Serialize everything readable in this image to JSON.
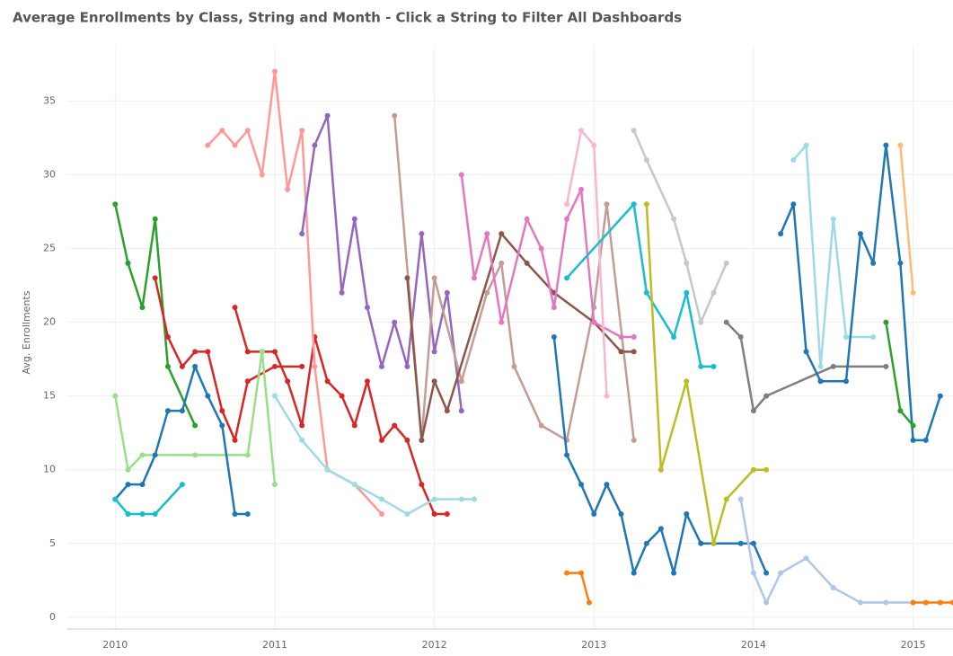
{
  "chart_data": {
    "type": "line",
    "title": "Average Enrollments by Class, String and Month - Click a String to Filter All Dashboards",
    "y_label": "Avg. Enrollments",
    "xlim": [
      2009.7,
      2015.25
    ],
    "ylim": [
      -0.8,
      38.8
    ],
    "xticks": [
      2010,
      2011,
      2012,
      2013,
      2014,
      2015
    ],
    "yticks": [
      0,
      5,
      10,
      15,
      20,
      25,
      30,
      35
    ],
    "grid": true,
    "series": [
      {
        "color": "#2ca02c",
        "x": [
          2010.0,
          2010.08,
          2010.17,
          2010.25,
          2010.33,
          2010.5
        ],
        "values": [
          28,
          24,
          21,
          27,
          17,
          13
        ]
      },
      {
        "color": "#d62728",
        "x": [
          2010.25,
          2010.33,
          2010.42,
          2010.5,
          2010.58,
          2010.67,
          2010.75,
          2010.83,
          2011.0,
          2011.17
        ],
        "values": [
          23,
          19,
          17,
          18,
          18,
          14,
          12,
          16,
          17,
          17
        ]
      },
      {
        "color": "#d62728",
        "x": [
          2010.75,
          2010.83,
          2010.92,
          2011.0,
          2011.08,
          2011.17,
          2011.25,
          2011.33,
          2011.42,
          2011.5,
          2011.58,
          2011.67,
          2011.75,
          2011.83,
          2011.92,
          2012.0,
          2012.08
        ],
        "values": [
          21,
          18,
          18,
          18,
          16,
          13,
          19,
          16,
          15,
          13,
          16,
          12,
          13,
          12,
          9,
          7,
          7
        ]
      },
      {
        "color": "#98df8a",
        "x": [
          2010.0,
          2010.08,
          2010.17,
          2010.5,
          2010.83,
          2010.92,
          2011.0
        ],
        "values": [
          15,
          10,
          11,
          11,
          11,
          18,
          9
        ]
      },
      {
        "color": "#1f77b4",
        "x": [
          2010.0,
          2010.08,
          2010.17,
          2010.25,
          2010.33,
          2010.42,
          2010.5,
          2010.58,
          2010.67,
          2010.75,
          2010.83
        ],
        "values": [
          8,
          9,
          9,
          11,
          14,
          14,
          17,
          15,
          13,
          7,
          7
        ]
      },
      {
        "color": "#17becf",
        "x": [
          2010.0,
          2010.08,
          2010.17,
          2010.25,
          2010.42
        ],
        "values": [
          8,
          7,
          7,
          7,
          9
        ]
      },
      {
        "color": "#ff9896",
        "x": [
          2010.58,
          2010.67,
          2010.75,
          2010.83,
          2010.92,
          2011.0,
          2011.08,
          2011.17,
          2011.25,
          2011.33,
          2011.5,
          2011.67
        ],
        "values": [
          32,
          33,
          32,
          33,
          30,
          37,
          29,
          33,
          17,
          10,
          9,
          7
        ]
      },
      {
        "color": "#9edae5",
        "x": [
          2011.0,
          2011.17,
          2011.33,
          2011.5,
          2011.67,
          2011.83,
          2012.0,
          2012.17,
          2012.25
        ],
        "values": [
          15,
          12,
          10,
          9,
          8,
          7,
          8,
          8,
          8
        ]
      },
      {
        "color": "#9467bd",
        "x": [
          2011.17,
          2011.25,
          2011.33,
          2011.42,
          2011.5,
          2011.58,
          2011.67,
          2011.75,
          2011.83,
          2011.92,
          2012.0,
          2012.08,
          2012.17
        ],
        "values": [
          26,
          32,
          34,
          22,
          27,
          21,
          17,
          20,
          17,
          26,
          18,
          22,
          14
        ]
      },
      {
        "color": "#c49c94",
        "x": [
          2011.75,
          2011.92,
          2012.0,
          2012.17,
          2012.33,
          2012.42,
          2012.5,
          2012.67,
          2012.83,
          2013.0,
          2013.08,
          2013.25
        ],
        "values": [
          34,
          12,
          23,
          16,
          22,
          24,
          17,
          13,
          12,
          21,
          28,
          12
        ]
      },
      {
        "color": "#8c564b",
        "x": [
          2011.83,
          2011.92,
          2012.0,
          2012.08,
          2012.42,
          2012.58,
          2012.75,
          2013.0,
          2013.17,
          2013.25
        ],
        "values": [
          23,
          12,
          16,
          14,
          26,
          24,
          22,
          20,
          18,
          18
        ]
      },
      {
        "color": "#e377c2",
        "x": [
          2012.17,
          2012.25,
          2012.33,
          2012.42,
          2012.58,
          2012.67,
          2012.75,
          2012.83,
          2012.92,
          2013.0,
          2013.17,
          2013.25
        ],
        "values": [
          30,
          23,
          26,
          20,
          27,
          25,
          21,
          27,
          29,
          20,
          19,
          19
        ]
      },
      {
        "color": "#f7b6d2",
        "x": [
          2012.83,
          2012.92,
          2013.0,
          2013.08
        ],
        "values": [
          28,
          33,
          32,
          15
        ]
      },
      {
        "color": "#17becf",
        "x": [
          2012.83,
          2013.25,
          2013.33,
          2013.5,
          2013.58,
          2013.67,
          2013.75
        ],
        "values": [
          23,
          28,
          22,
          19,
          22,
          17,
          17
        ]
      },
      {
        "color": "#c7c7c7",
        "x": [
          2013.25,
          2013.33,
          2013.5,
          2013.58,
          2013.67,
          2013.75,
          2013.83
        ],
        "values": [
          33,
          31,
          27,
          24,
          20,
          22,
          24
        ]
      },
      {
        "color": "#1f77b4",
        "x": [
          2012.75,
          2012.83,
          2012.92,
          2013.0,
          2013.08,
          2013.17,
          2013.25,
          2013.33,
          2013.42,
          2013.5,
          2013.58,
          2013.67,
          2013.75,
          2013.92,
          2014.0,
          2014.08
        ],
        "values": [
          19,
          11,
          9,
          7,
          9,
          7,
          3,
          5,
          6,
          3,
          7,
          5,
          5,
          5,
          5,
          3
        ]
      },
      {
        "color": "#bcbd22",
        "x": [
          2013.33,
          2013.42,
          2013.58,
          2013.75,
          2013.83,
          2014.0,
          2014.08
        ],
        "values": [
          28,
          10,
          16,
          5,
          8,
          10,
          10
        ]
      },
      {
        "color": "#7f7f7f",
        "x": [
          2013.83,
          2013.92,
          2014.0,
          2014.08,
          2014.5,
          2014.83
        ],
        "values": [
          20,
          19,
          14,
          15,
          17,
          17
        ]
      },
      {
        "color": "#aec7e8",
        "x": [
          2013.92,
          2014.0,
          2014.08,
          2014.17,
          2014.33,
          2014.5,
          2014.67,
          2014.83,
          2015.0
        ],
        "values": [
          8,
          3,
          1,
          3,
          4,
          2,
          1,
          1,
          1
        ]
      },
      {
        "color": "#9edae5",
        "x": [
          2014.25,
          2014.33,
          2014.42,
          2014.5,
          2014.58,
          2014.75
        ],
        "values": [
          31,
          32,
          17,
          27,
          19,
          19
        ]
      },
      {
        "color": "#1f77b4",
        "x": [
          2014.17,
          2014.25,
          2014.33,
          2014.42,
          2014.58,
          2014.67,
          2014.75,
          2014.83,
          2014.92,
          2015.0,
          2015.08,
          2015.17
        ],
        "values": [
          26,
          28,
          18,
          16,
          16,
          26,
          24,
          32,
          24,
          12,
          12,
          15
        ]
      },
      {
        "color": "#2ca02c",
        "x": [
          2014.83,
          2014.92,
          2015.0
        ],
        "values": [
          20,
          14,
          13
        ]
      },
      {
        "color": "#ffbb78",
        "x": [
          2014.92,
          2015.0
        ],
        "values": [
          32,
          22
        ]
      },
      {
        "color": "#ff7f0e",
        "x": [
          2012.83,
          2012.92,
          2012.97
        ],
        "values": [
          3,
          3,
          1
        ]
      },
      {
        "color": "#ff7f0e",
        "x": [
          2015.0,
          2015.08,
          2015.17,
          2015.25
        ],
        "values": [
          1,
          1,
          1,
          1
        ]
      }
    ]
  }
}
